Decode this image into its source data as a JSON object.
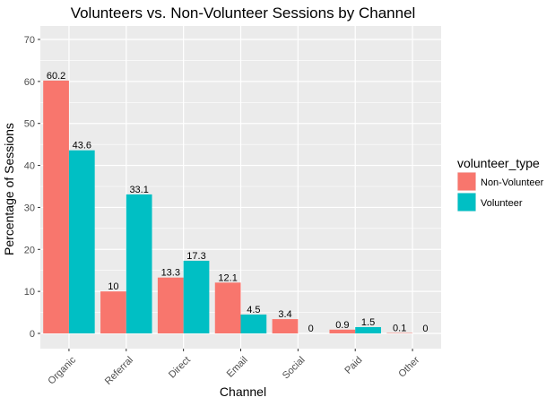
{
  "chart_data": {
    "type": "bar",
    "title": "Volunteers vs. Non-Volunteer Sessions by Channel",
    "xlabel": "Channel",
    "ylabel": "Percentage of Sessions",
    "ylim": [
      0,
      72
    ],
    "yticks": [
      0,
      10,
      20,
      30,
      40,
      50,
      60,
      70
    ],
    "grid": true,
    "legend_position": "right",
    "legend_title": "volunteer_type",
    "categories": [
      "Organic",
      "Referral",
      "Direct",
      "Email",
      "Social",
      "Paid",
      "Other"
    ],
    "series": [
      {
        "name": "Non-Volunteer",
        "color": "#F8766D",
        "values": [
          60.2,
          10,
          13.3,
          12.1,
          3.4,
          0.9,
          0.1
        ],
        "labels": [
          "60.2",
          "10",
          "13.3",
          "12.1",
          "3.4",
          "0.9",
          "0.1"
        ]
      },
      {
        "name": "Volunteer",
        "color": "#00BFC4",
        "values": [
          43.6,
          33.1,
          17.3,
          4.5,
          0,
          1.5,
          0
        ],
        "labels": [
          "43.6",
          "33.1",
          "17.3",
          "4.5",
          "0",
          "1.5",
          "0"
        ]
      }
    ]
  }
}
